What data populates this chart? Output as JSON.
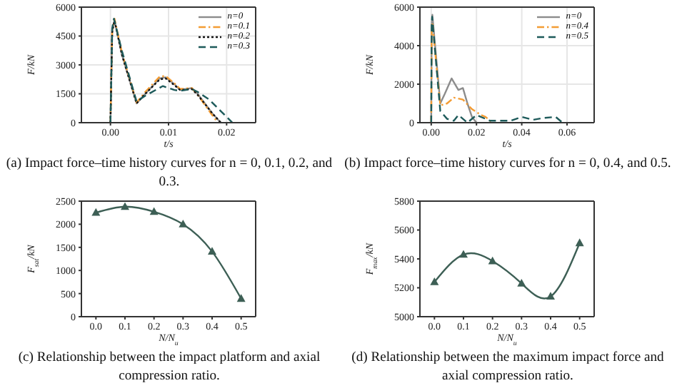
{
  "chart_data": [
    {
      "type": "line",
      "title": "(a) Impact force–time history curves for n = 0, 0.1, 0.2, and 0.3.",
      "xlabel": "t/s",
      "ylabel": "F/kN",
      "xlim": [
        -0.005,
        0.025
      ],
      "xticks": [
        {
          "value": 0,
          "label": "0.00"
        },
        {
          "value": 0.01,
          "label": "0.01"
        },
        {
          "value": 0.02,
          "label": "0.02"
        }
      ],
      "ylim": [
        0,
        6000
      ],
      "yticks": [
        0,
        1500,
        3000,
        4500,
        6000
      ],
      "grid": true,
      "legend": "top right",
      "series": [
        {
          "name": "n=0",
          "color": "#8c8c8c",
          "line_style": "solid",
          "x": [
            0,
            0.0003,
            0.0007,
            0.002,
            0.0045,
            0.006,
            0.0085,
            0.0095,
            0.011,
            0.012,
            0.014,
            0.015,
            0.0175,
            0.019
          ],
          "values": [
            0,
            4800,
            5300,
            3500,
            1000,
            1500,
            2300,
            2350,
            2000,
            1700,
            1800,
            1500,
            500,
            0
          ]
        },
        {
          "name": "n=0.1",
          "color": "#f39c34",
          "line_style": "dashdot",
          "x": [
            0,
            0.0003,
            0.0007,
            0.002,
            0.0045,
            0.006,
            0.0085,
            0.0095,
            0.011,
            0.012,
            0.014,
            0.015,
            0.0175,
            0.0185
          ],
          "values": [
            0,
            4800,
            5400,
            3600,
            1050,
            1600,
            2400,
            2420,
            2050,
            1750,
            1800,
            1450,
            400,
            0
          ]
        },
        {
          "name": "n=0.2",
          "color": "#111111",
          "line_style": "dotted",
          "x": [
            0,
            0.0003,
            0.0007,
            0.002,
            0.0045,
            0.006,
            0.0085,
            0.0095,
            0.011,
            0.012,
            0.014,
            0.015,
            0.0175,
            0.019
          ],
          "values": [
            0,
            4700,
            5300,
            3500,
            1000,
            1500,
            2250,
            2300,
            1950,
            1700,
            1750,
            1450,
            500,
            0
          ]
        },
        {
          "name": "n=0.3",
          "color": "#1d5a5a",
          "line_style": "dashed",
          "x": [
            0,
            0.0003,
            0.0006,
            0.002,
            0.0045,
            0.006,
            0.009,
            0.011,
            0.012,
            0.014,
            0.015,
            0.017,
            0.019,
            0.021
          ],
          "values": [
            0,
            4900,
            5400,
            3700,
            1100,
            1400,
            1900,
            1700,
            1650,
            1750,
            1600,
            1200,
            600,
            0
          ]
        }
      ]
    },
    {
      "type": "line",
      "title": "(b) Impact force–time history curves for n = 0, 0.4, and 0.5.",
      "xlabel": "t/s",
      "ylabel": "F/kN",
      "xlim": [
        -0.005,
        0.072
      ],
      "xticks": [
        {
          "value": 0,
          "label": "0.00"
        },
        {
          "value": 0.02,
          "label": "0.02"
        },
        {
          "value": 0.04,
          "label": "0.04"
        },
        {
          "value": 0.06,
          "label": "0.06"
        }
      ],
      "ylim": [
        0,
        6000
      ],
      "yticks": [
        0,
        2000,
        4000,
        6000
      ],
      "grid": true,
      "legend": "top right",
      "series": [
        {
          "name": "n=0",
          "color": "#8c8c8c",
          "line_style": "solid",
          "x": [
            0,
            0.0002,
            0.0005,
            0.004,
            0.006,
            0.009,
            0.012,
            0.014,
            0.016,
            0.018,
            0.02
          ],
          "values": [
            0,
            5000,
            5600,
            1000,
            1500,
            2300,
            1700,
            1800,
            1000,
            300,
            0
          ]
        },
        {
          "name": "n=0.4",
          "color": "#f39c34",
          "line_style": "dashdot",
          "x": [
            0,
            0.0002,
            0.0005,
            0.004,
            0.007,
            0.01,
            0.014,
            0.018,
            0.022,
            0.024,
            0.027
          ],
          "values": [
            0,
            4700,
            5200,
            900,
            1000,
            1300,
            1200,
            700,
            400,
            300,
            0
          ]
        },
        {
          "name": "n=0.5",
          "color": "#1d5a5a",
          "line_style": "dashed",
          "x": [
            0,
            0.0002,
            0.0004,
            0.004,
            0.007,
            0.01,
            0.012,
            0.014,
            0.016,
            0.02,
            0.026,
            0.035,
            0.04,
            0.045,
            0.05,
            0.055,
            0.058
          ],
          "values": [
            0,
            5000,
            5500,
            600,
            200,
            100,
            400,
            200,
            0,
            400,
            100,
            100,
            300,
            150,
            250,
            300,
            0
          ]
        }
      ]
    },
    {
      "type": "line",
      "title": "(c) Relationship between the impact platform and axial compression ratio.",
      "xlabel": "N/N$_{u}$",
      "ylabel": "F$_{sat}$/kN",
      "xlim": [
        -0.05,
        0.55
      ],
      "xticks": [
        {
          "value": 0,
          "label": "0.0"
        },
        0.1,
        0.2,
        0.3,
        0.4,
        0.5
      ],
      "ylim": [
        0,
        2500
      ],
      "yticks": [
        0,
        500,
        1000,
        1500,
        2000,
        2500
      ],
      "marker": "triangle",
      "series": [
        {
          "color": "#3d5f55",
          "x": [
            0,
            0.1,
            0.2,
            0.3,
            0.4,
            0.5
          ],
          "values": [
            2250,
            2380,
            2270,
            2000,
            1410,
            390
          ]
        }
      ]
    },
    {
      "type": "line",
      "title": "(d) Relationship between the maximum impact force and axial compression ratio.",
      "xlabel": "N/N$_{u}$",
      "ylabel": "F$_{max}$/kN",
      "xlim": [
        -0.05,
        0.55
      ],
      "xticks": [
        {
          "value": 0,
          "label": "0.0"
        },
        0.1,
        0.2,
        0.3,
        0.4,
        0.5
      ],
      "ylim": [
        5000,
        5800
      ],
      "yticks": [
        5000,
        5200,
        5400,
        5600,
        5800
      ],
      "marker": "triangle",
      "series": [
        {
          "color": "#3d5f55",
          "x": [
            0,
            0.1,
            0.2,
            0.3,
            0.4,
            0.5
          ],
          "values": [
            5240,
            5430,
            5385,
            5230,
            5140,
            5510
          ]
        }
      ]
    }
  ]
}
